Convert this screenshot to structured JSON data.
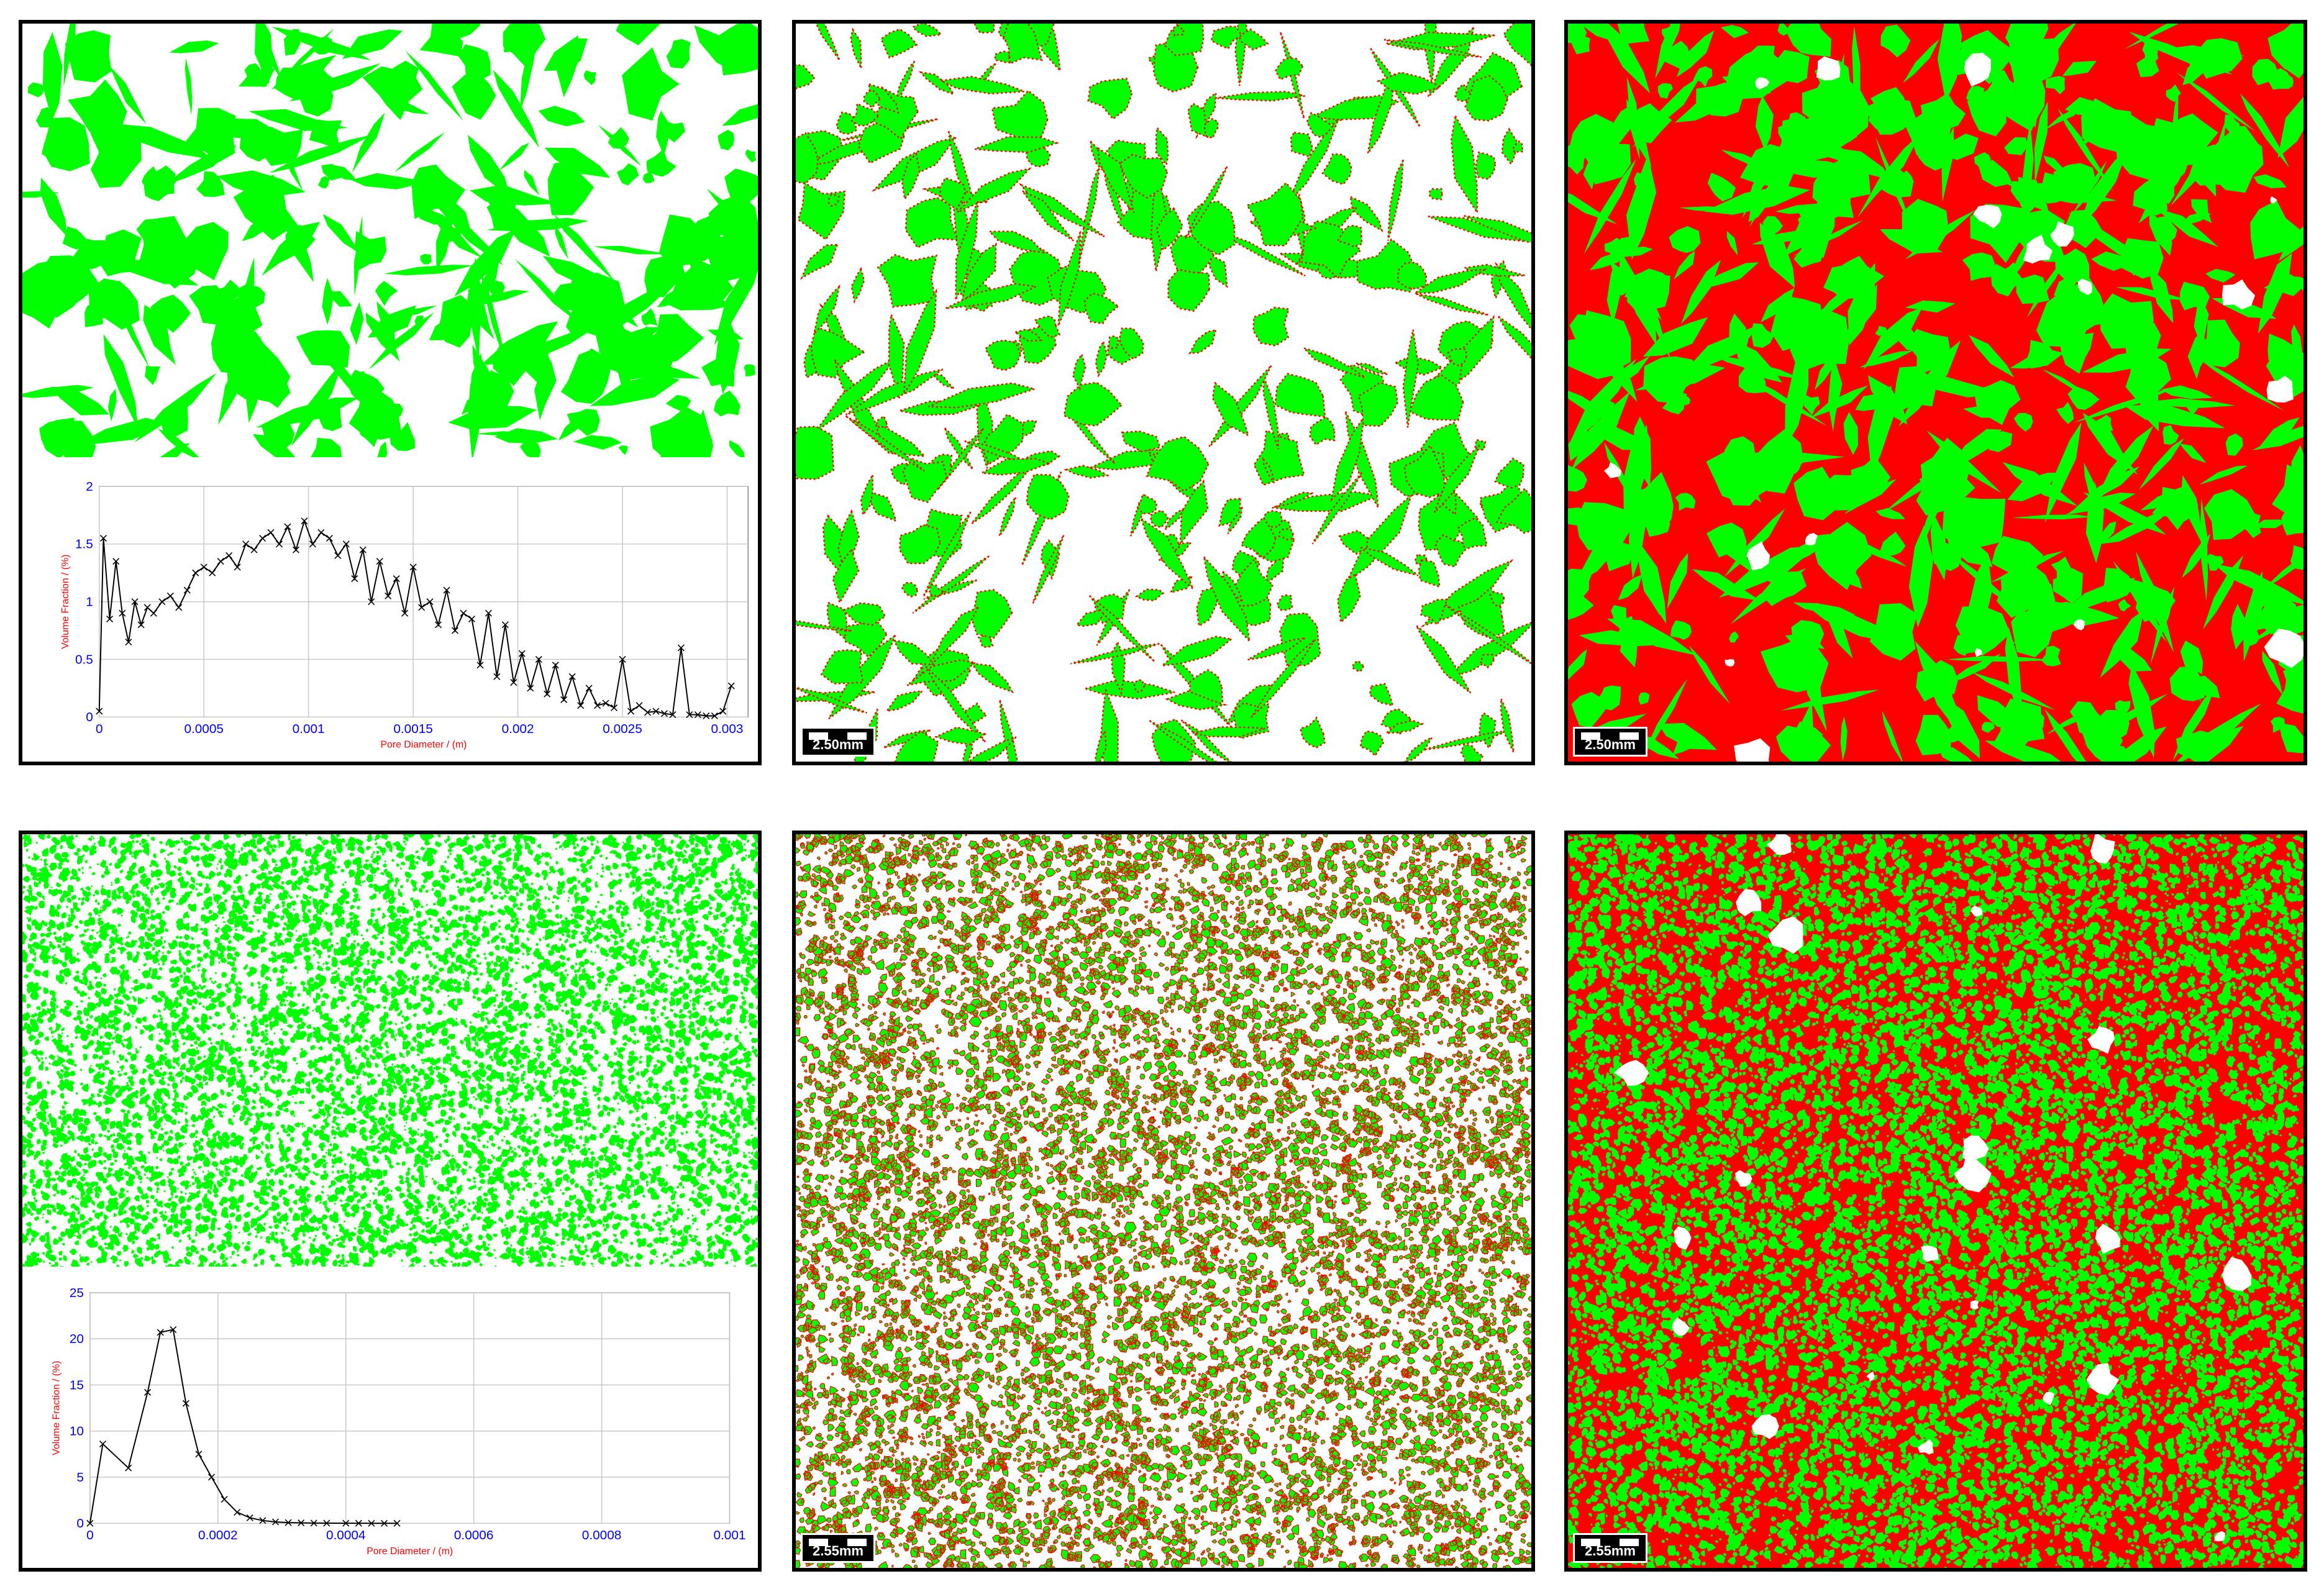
{
  "colors": {
    "solid": "#00ff00",
    "pore": "#ff0000",
    "background": "#ffffff",
    "frame": "#000000",
    "axis_tick_text": "#0000ff",
    "axis_title": "#ff0000"
  },
  "scale_bars": {
    "top_row": "2.50mm",
    "bottom_row": "2.55mm"
  },
  "chart_data": [
    {
      "type": "line",
      "title": "",
      "xlabel": "Pore Diameter / (m)",
      "ylabel": "Volume Fraction / (%)",
      "xlim": [
        0,
        0.0031
      ],
      "ylim": [
        0,
        2
      ],
      "xticks": [
        0,
        0.0005,
        0.001,
        0.0015,
        0.002,
        0.0025,
        0.003
      ],
      "xtick_labels": [
        "0",
        "0.0005",
        "0.001",
        "0.0015",
        "0.002",
        "0.0025",
        "0.003"
      ],
      "yticks": [
        0,
        0.5,
        1,
        1.5,
        2
      ],
      "ytick_labels": [
        "0",
        "0.5",
        "1",
        "1.5",
        "2"
      ],
      "grid": true,
      "series": [
        {
          "marker": "x",
          "color": "#000000",
          "x": [
            0,
            2e-05,
            5e-05,
            8e-05,
            0.00011,
            0.00014,
            0.00017,
            0.0002,
            0.00023,
            0.00026,
            0.0003,
            0.00034,
            0.00038,
            0.00042,
            0.00046,
            0.0005,
            0.00054,
            0.00058,
            0.00062,
            0.00066,
            0.0007,
            0.00074,
            0.00078,
            0.00082,
            0.00086,
            0.0009,
            0.00094,
            0.00098,
            0.00102,
            0.00106,
            0.0011,
            0.00114,
            0.00118,
            0.00122,
            0.00126,
            0.0013,
            0.00134,
            0.00138,
            0.00142,
            0.00146,
            0.0015,
            0.00154,
            0.00158,
            0.00162,
            0.00166,
            0.0017,
            0.00174,
            0.00178,
            0.00182,
            0.00186,
            0.0019,
            0.00194,
            0.00198,
            0.00202,
            0.00206,
            0.0021,
            0.00214,
            0.00218,
            0.00222,
            0.00226,
            0.0023,
            0.00234,
            0.00238,
            0.00242,
            0.00246,
            0.0025,
            0.00254,
            0.00258,
            0.00262,
            0.00266,
            0.0027,
            0.00274,
            0.00278,
            0.00282,
            0.00286,
            0.0029,
            0.00294,
            0.00298,
            0.00302
          ],
          "y": [
            0.05,
            1.55,
            0.85,
            1.35,
            0.9,
            0.65,
            1.0,
            0.8,
            0.95,
            0.9,
            1.0,
            1.05,
            0.95,
            1.1,
            1.25,
            1.3,
            1.25,
            1.35,
            1.4,
            1.3,
            1.5,
            1.45,
            1.55,
            1.6,
            1.5,
            1.65,
            1.45,
            1.7,
            1.5,
            1.6,
            1.55,
            1.4,
            1.5,
            1.2,
            1.45,
            1.0,
            1.35,
            1.05,
            1.2,
            0.9,
            1.3,
            0.95,
            1.0,
            0.8,
            1.1,
            0.75,
            0.9,
            0.85,
            0.45,
            0.9,
            0.35,
            0.8,
            0.3,
            0.55,
            0.25,
            0.5,
            0.2,
            0.45,
            0.15,
            0.35,
            0.1,
            0.25,
            0.1,
            0.12,
            0.08,
            0.5,
            0.05,
            0.1,
            0.04,
            0.05,
            0.03,
            0.02,
            0.6,
            0.02,
            0.02,
            0.01,
            0.01,
            0.05,
            0.27
          ]
        }
      ]
    },
    {
      "type": "line",
      "title": "",
      "xlabel": "Pore Diameter / (m)",
      "ylabel": "Volume Fraction / (%)",
      "xlim": [
        0,
        0.001
      ],
      "ylim": [
        0,
        25
      ],
      "xticks": [
        0,
        0.0002,
        0.0004,
        0.0006,
        0.0008,
        0.001
      ],
      "xtick_labels": [
        "0",
        "0.0002",
        "0.0004",
        "0.0006",
        "0.0008",
        "0.001"
      ],
      "yticks": [
        0,
        5,
        10,
        15,
        20,
        25
      ],
      "ytick_labels": [
        "0",
        "5",
        "10",
        "15",
        "20",
        "25"
      ],
      "grid": true,
      "series": [
        {
          "marker": "x",
          "color": "#000000",
          "x": [
            0,
            2e-05,
            6e-05,
            9e-05,
            0.00011,
            0.00013,
            0.00015,
            0.00017,
            0.00019,
            0.00021,
            0.00023,
            0.00025,
            0.00027,
            0.00029,
            0.00031,
            0.00033,
            0.00035,
            0.00037,
            0.0004,
            0.00042,
            0.00044,
            0.00046,
            0.00048
          ],
          "y": [
            0,
            8.6,
            6.0,
            14.2,
            20.7,
            21.0,
            13.0,
            7.5,
            5.0,
            2.6,
            1.2,
            0.6,
            0.3,
            0.15,
            0.08,
            0.05,
            0.03,
            0.02,
            0.01,
            0.01,
            0,
            0,
            0
          ]
        }
      ]
    }
  ]
}
